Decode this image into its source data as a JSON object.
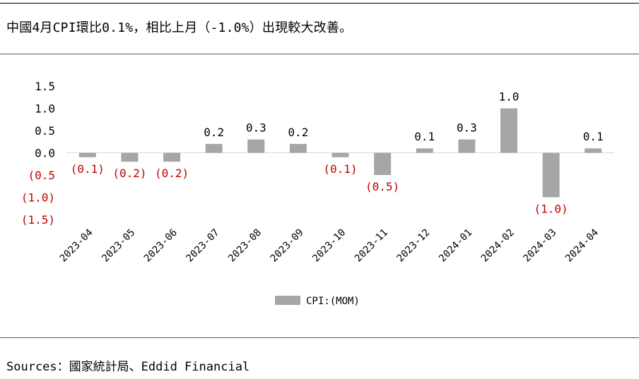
{
  "header": {
    "title": "中國4月CPI環比0.1%，相比上月（-1.0%）出現較大改善。"
  },
  "footer": {
    "source": "Sources：國家統計局、Eddid Financial"
  },
  "colors": {
    "bar": "#a6a6a6",
    "negative_label": "#c00000",
    "axis": "#d9d9d9",
    "text": "#000000"
  },
  "chart_data": {
    "type": "bar",
    "categories": [
      "2023-04",
      "2023-05",
      "2023-06",
      "2023-07",
      "2023-08",
      "2023-09",
      "2023-10",
      "2023-11",
      "2023-12",
      "2024-01",
      "2024-02",
      "2024-03",
      "2024-04"
    ],
    "series": [
      {
        "name": "CPI:(MOM)",
        "values": [
          -0.1,
          -0.2,
          -0.2,
          0.2,
          0.3,
          0.2,
          -0.1,
          -0.5,
          0.1,
          0.3,
          1.0,
          -1.0,
          0.1
        ]
      }
    ],
    "data_labels": [
      "(0.1)",
      "(0.2)",
      "(0.2)",
      "0.2",
      "0.3",
      "0.2",
      "(0.1)",
      "(0.5)",
      "0.1",
      "0.3",
      "1.0",
      "(1.0)",
      "0.1"
    ],
    "y_ticks": [
      1.5,
      1.0,
      0.5,
      0.0,
      -0.5,
      -1.0,
      -1.5
    ],
    "y_tick_labels": [
      "1.5",
      "1.0",
      "0.5",
      "0.0",
      "(0.5",
      "(1.0)",
      "(1.5)"
    ],
    "ylim": [
      -1.5,
      1.5
    ],
    "legend": {
      "position": "bottom",
      "label": "CPI:(MOM)"
    },
    "grid": false
  }
}
